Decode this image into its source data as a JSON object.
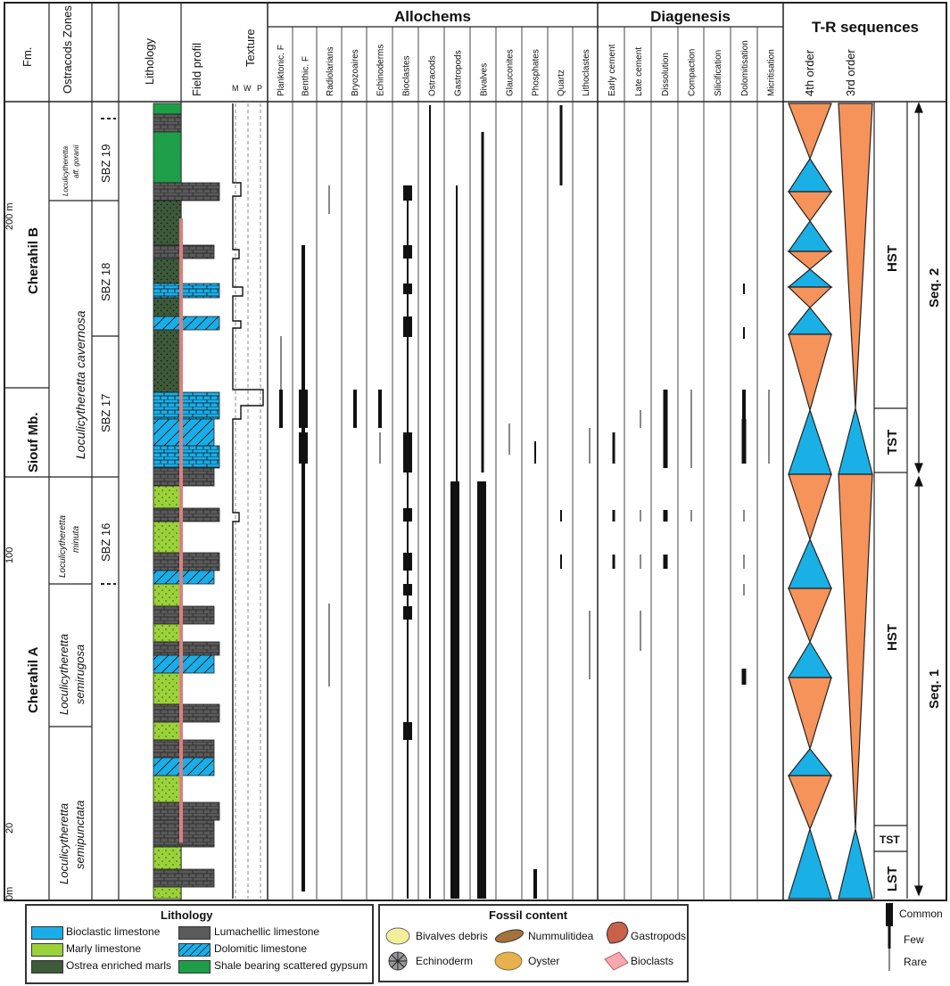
{
  "depth_axis": {
    "labels": [
      "200 m",
      "100",
      "20",
      "0m"
    ]
  },
  "headers": {
    "formation": "Fm.",
    "zones": "Ostracods Zones",
    "lithology": "Lithology",
    "field_profile": "Field profil",
    "texture": "Texture",
    "texture_scale": [
      "M",
      "W",
      "P"
    ],
    "allochems_group": "Allochems",
    "diagenesis_group": "Diagenesis",
    "tr_group": "T-R sequences",
    "fourth_order": "4th order",
    "third_order": "3rd order"
  },
  "allochem_columns": [
    "Planktonic. F",
    "Benthic. F",
    "Radiolarians",
    "Bryozoaires",
    "Echinoderms",
    "Bioclastes",
    "Ostracods",
    "Gastropods",
    "Bivalves",
    "Glauconites",
    "Phosphates",
    "Quartz",
    "Lithoclastes"
  ],
  "diagenesis_columns": [
    "Early cement",
    "Late cement",
    "Dissolution",
    "Compaction",
    "Silicification",
    "Dolomitisation",
    "Micritisation"
  ],
  "formations": [
    "Cherahil B",
    "Siouf Mb.",
    "Cherahil A"
  ],
  "ostracod_species": [
    {
      "genus": "Loculicytheretta",
      "species": "aff. goranii"
    },
    {
      "genus": "Loculicytheretta",
      "species": "cavernosa"
    },
    {
      "genus": "Loculicytheretta",
      "species": "minuta"
    },
    {
      "genus": "Loculicytheretta",
      "species": "semirugosa"
    },
    {
      "genus": "Loculicytheretta",
      "species": "semipunctata"
    }
  ],
  "sbz_zones": [
    "SBZ 19",
    "SBZ 18",
    "SBZ 17",
    "SBZ 16"
  ],
  "systems_tracts": [
    "HST",
    "TST",
    "HST",
    "TST",
    "LST"
  ],
  "sequences": [
    "Seq. 2",
    "Seq. 1"
  ],
  "legend": {
    "lithology_title": "Lithology",
    "lithology_items": [
      {
        "label": "Bioclastic limestone",
        "color": "#1aaee8"
      },
      {
        "label": "Lumachellic limestone",
        "color": "#5a5a5a"
      },
      {
        "label": "Marly limestone",
        "color": "#9bd13a"
      },
      {
        "label": "Dolomitic limestone",
        "color": "#1aaee8"
      },
      {
        "label": "Ostrea enriched marls",
        "color": "#3d5a3a"
      },
      {
        "label": "Shale bearing scattered gypsum",
        "color": "#1f9e4a"
      }
    ],
    "fossil_title": "Fossil content",
    "fossil_items": [
      "Bivalves debris",
      "Nummulitidea",
      "Gastropods",
      "Echinoderm",
      "Oyster",
      "Bioclasts"
    ],
    "abundance": [
      "Common",
      "Few",
      "Rare"
    ]
  },
  "colors": {
    "transgressive": "#1ab0e6",
    "regressive": "#f5935a",
    "marly": "#9bd13a",
    "marl_dark": "#3d5a3a",
    "shale": "#1f9e4a",
    "lumachelle": "#5a5a5a"
  }
}
